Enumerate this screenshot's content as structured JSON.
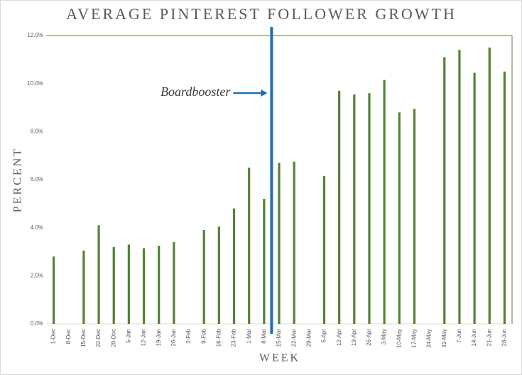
{
  "chart_data": {
    "type": "bar",
    "title": "AVERAGE PINTEREST FOLLOWER GROWTH",
    "x_label": "WEEK",
    "y_label": "PERCENT",
    "annotation": "Boardbooster",
    "categories": [
      "1-Dec",
      "8-Dec",
      "15-Dec",
      "22-Dec",
      "29-Dec",
      "5-Jan",
      "12-Jan",
      "19-Jan",
      "26-Jan",
      "2-Feb",
      "9-Feb",
      "16-Feb",
      "23-Feb",
      "1-Mar",
      "8-Mar",
      "15-Mar",
      "22-Mar",
      "29-Mar",
      "5-Apr",
      "12-Apr",
      "19-Apr",
      "26-Apr",
      "3-May",
      "10-May",
      "17-May",
      "24-May",
      "31-May",
      "7-Jun",
      "14-Jun",
      "21-Jun",
      "28-Jun"
    ],
    "values": [
      2.8,
      null,
      3.05,
      4.1,
      3.2,
      3.3,
      3.15,
      3.25,
      3.4,
      null,
      3.9,
      4.05,
      4.8,
      6.5,
      5.2,
      6.7,
      6.75,
      null,
      6.15,
      9.7,
      9.55,
      9.6,
      10.15,
      8.8,
      8.95,
      null,
      11.1,
      11.4,
      10.45,
      11.5,
      10.5
    ],
    "color": "#548235",
    "ylim": [
      0,
      12
    ],
    "yticks": [
      {
        "value": 0,
        "label": "0.0%"
      },
      {
        "value": 2,
        "label": "2.0%"
      },
      {
        "value": 4,
        "label": "4.0%"
      },
      {
        "value": 6,
        "label": "6.0%"
      },
      {
        "value": 8,
        "label": "8.0%"
      },
      {
        "value": 10,
        "label": "10.0%"
      },
      {
        "value": 12,
        "label": "12.0%"
      }
    ],
    "grid": false
  }
}
